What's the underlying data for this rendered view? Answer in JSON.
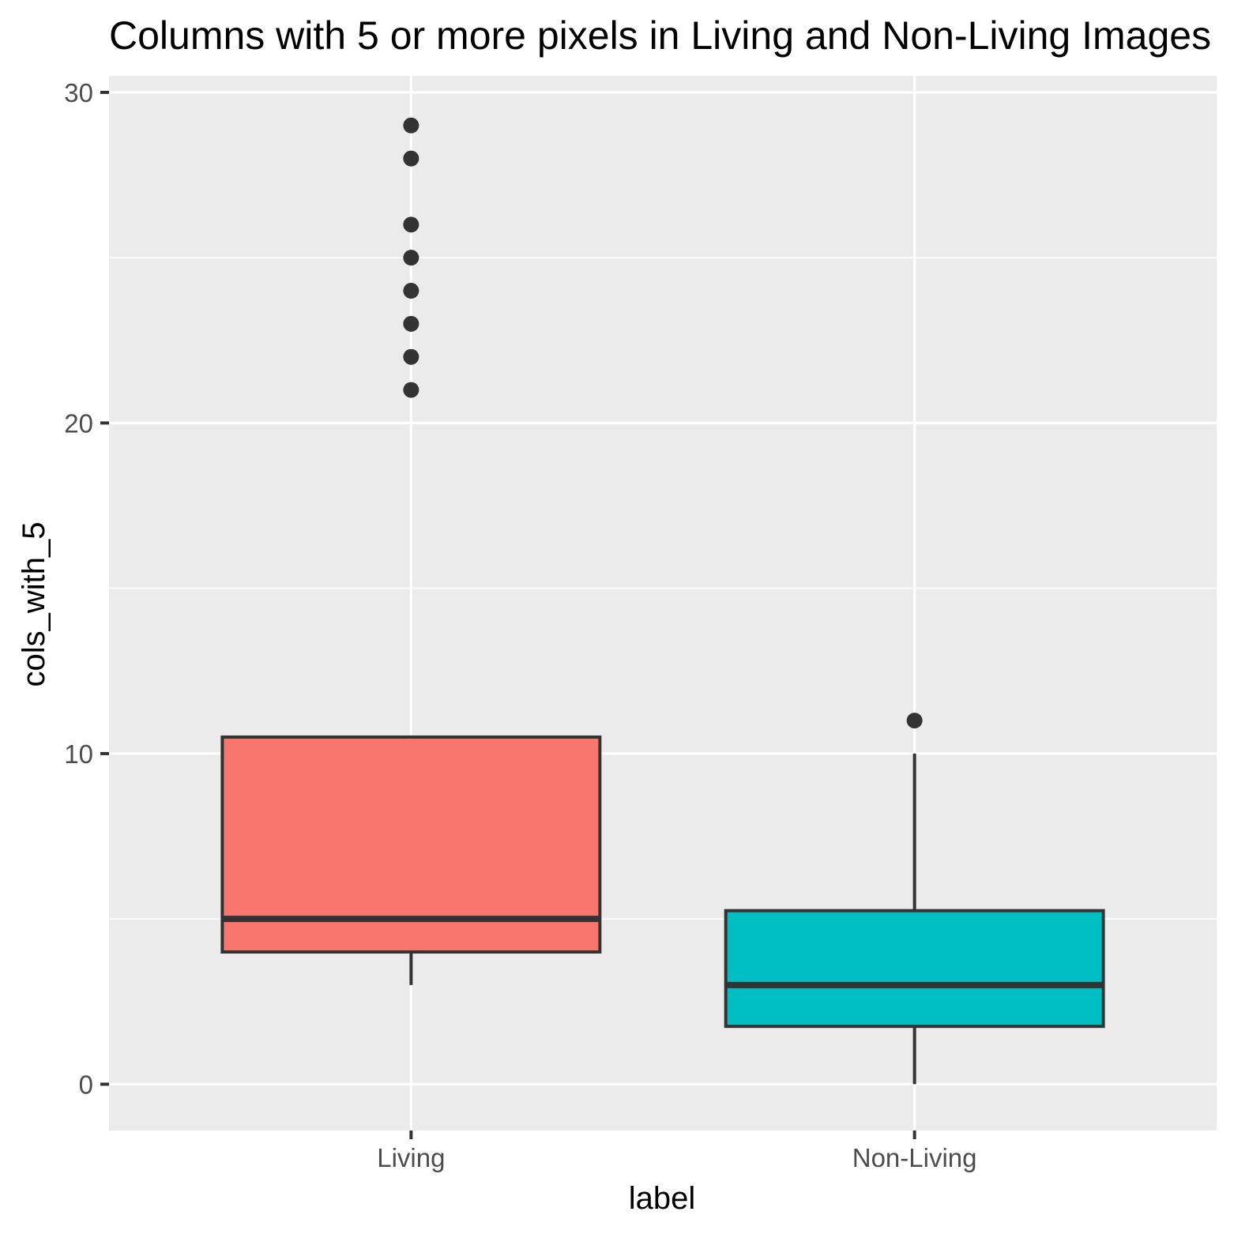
{
  "chart_data": {
    "type": "boxplot",
    "title": "Columns with 5 or more pixels in Living and Non-Living Images",
    "xlabel": "label",
    "ylabel": "cols_with_5",
    "categories": [
      "Living",
      "Non-Living"
    ],
    "ylim": [
      -1.4,
      30.5
    ],
    "yticks": [
      0,
      10,
      20,
      30
    ],
    "grid": true,
    "legend": "none",
    "boxes": [
      {
        "category": "Living",
        "whisker_low": 3,
        "q1": 4,
        "median": 5,
        "q3": 10.5,
        "whisker_high": 10.5,
        "outliers": [
          21,
          22,
          23,
          24,
          25,
          26,
          28,
          29
        ],
        "fill": "#F8766D"
      },
      {
        "category": "Non-Living",
        "whisker_low": 0,
        "q1": 1.75,
        "median": 3,
        "q3": 5.25,
        "whisker_high": 10,
        "outliers": [
          11
        ],
        "fill": "#00BFC4"
      }
    ],
    "colors": {
      "panel": "#EBEBEB",
      "grid": "#FFFFFF",
      "outline": "#333333",
      "tick_text": "#4D4D4D"
    }
  }
}
